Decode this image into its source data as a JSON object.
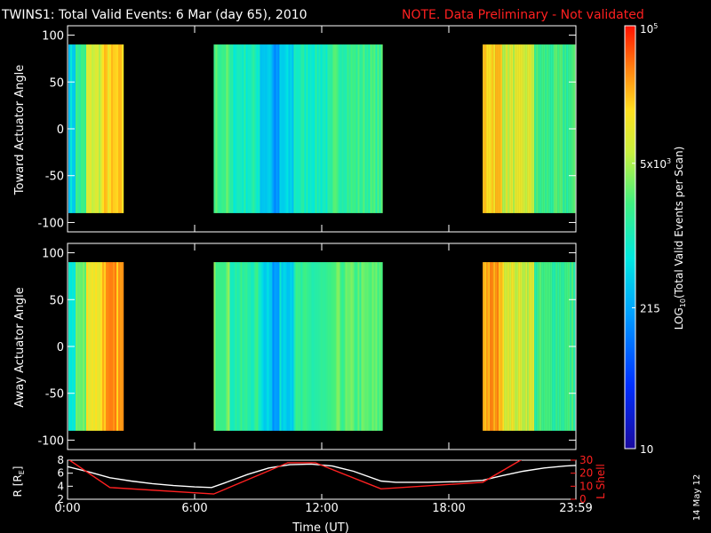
{
  "header": {
    "title": "TWINS1: Total Valid Events:  6 Mar (day  65), 2010",
    "note": "NOTE. Data Preliminary - Not validated",
    "note_color": "#ff2020"
  },
  "date_stamp": "14 May 12",
  "colors": {
    "background": "#000000",
    "axes": "#ffffff",
    "lshell": "#ff2020"
  },
  "chart_data": [
    {
      "type": "heatmap",
      "panel": "toward",
      "ylabel": "Toward Actuator Angle",
      "ylim": [
        -110,
        110
      ],
      "yticks": [
        100,
        50,
        0,
        -50,
        -100
      ],
      "data_y_range": [
        -90,
        90
      ],
      "xlim": [
        0,
        24
      ],
      "data_blocks_ut_hours": [
        [
          -0.1,
          2.6
        ],
        [
          6.9,
          14.8
        ],
        [
          19.6,
          24.1
        ]
      ],
      "color_scale": "log10 counts, 10 to 1e5"
    },
    {
      "type": "heatmap",
      "panel": "away",
      "ylabel": "Away Actuator Angle",
      "ylim": [
        -110,
        110
      ],
      "yticks": [
        100,
        50,
        0,
        -50,
        -100
      ],
      "data_y_range": [
        -90,
        90
      ],
      "xlim": [
        0,
        24
      ],
      "data_blocks_ut_hours": [
        [
          -0.1,
          2.6
        ],
        [
          6.9,
          14.8
        ],
        [
          19.6,
          24.1
        ]
      ],
      "color_scale": "log10 counts, 10 to 1e5"
    },
    {
      "type": "line",
      "panel": "orbit",
      "xlabel": "Time (UT)",
      "xlim": [
        0,
        24
      ],
      "xticks": [
        "0:00",
        "6:00",
        "12:00",
        "18:00",
        "23:59"
      ],
      "xtick_values": [
        0,
        6,
        12,
        18,
        24
      ],
      "ylabel_left": "R [R",
      "ylabel_left_sub": "E",
      "ylabel_left_end": "]",
      "ylim_left": [
        2,
        8
      ],
      "yticks_left": [
        2,
        4,
        6,
        8
      ],
      "ylabel_right": "L Shell",
      "ylim_right": [
        0,
        30
      ],
      "yticks_right": [
        0,
        10,
        20,
        30
      ],
      "series": [
        {
          "axis": "left",
          "color": "#ffffff",
          "x": [
            0,
            1,
            2,
            3,
            4,
            5,
            6,
            6.8,
            7.5,
            8.5,
            9.5,
            10.5,
            11.5,
            12.5,
            13.5,
            14.8,
            15.5,
            17,
            18.5,
            19.6,
            20.5,
            21.5,
            22.5,
            23.5,
            24
          ],
          "y": [
            7.0,
            6.2,
            5.3,
            4.8,
            4.4,
            4.1,
            3.9,
            3.8,
            4.6,
            5.8,
            6.8,
            7.3,
            7.4,
            7.1,
            6.3,
            4.8,
            4.6,
            4.6,
            4.7,
            4.9,
            5.6,
            6.3,
            6.8,
            7.1,
            7.2
          ]
        },
        {
          "axis": "right",
          "color": "#ff2020",
          "x": [
            0,
            2,
            6.9,
            10.4,
            11.7,
            14.8,
            19.6,
            21.5
          ],
          "y": [
            31,
            9,
            4,
            28,
            28,
            8,
            13,
            31
          ]
        }
      ]
    },
    {
      "type": "colorbar",
      "label": "LOG",
      "label_sub": "10",
      "label_end": "(Total Valid Events per Scan)",
      "range": [
        10,
        100000
      ],
      "ticks": [
        {
          "value": 100000,
          "base": "10",
          "exp": "5"
        },
        {
          "value": 5000,
          "base": "5x10",
          "exp": "3"
        },
        {
          "value": 215,
          "base": "215",
          "exp": ""
        },
        {
          "value": 10,
          "base": "10",
          "exp": ""
        }
      ]
    }
  ]
}
